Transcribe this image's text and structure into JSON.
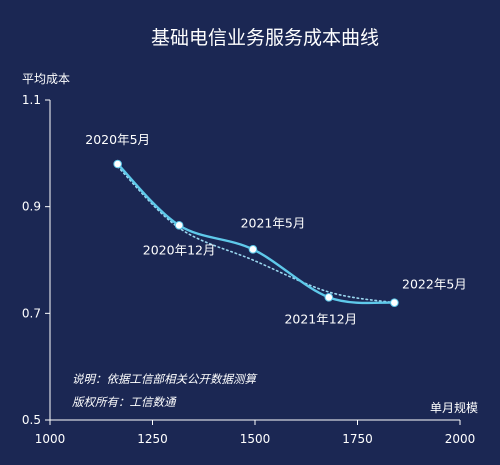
{
  "chart_data": {
    "type": "line",
    "title": "基础电信业务服务成本曲线",
    "xlabel": "单月规模",
    "ylabel": "平均成本",
    "xlim": [
      1000,
      2000
    ],
    "ylim": [
      0.5,
      1.1
    ],
    "xticks": [
      "1000",
      "1250",
      "1500",
      "1750",
      "2000"
    ],
    "yticks": [
      "1.1",
      "0.9",
      "0.7",
      "0.5"
    ],
    "series": [
      {
        "x": [
          1165,
          1315,
          1495,
          1680,
          1840
        ],
        "y": [
          0.98,
          0.865,
          0.82,
          0.73,
          0.72
        ],
        "labels": [
          "2020年5月",
          "2020年12月",
          "2021年5月",
          "2021年12月",
          "2022年5月"
        ],
        "color": "#5fc9ea",
        "style": "solid"
      },
      {
        "type": "trend",
        "style": "dotted",
        "color": "#9ad7ef",
        "x": [
          1165,
          1315,
          1495,
          1680,
          1840
        ],
        "y": [
          0.975,
          0.86,
          0.8,
          0.74,
          0.72
        ]
      }
    ],
    "notes": [
      "说明：依据工信部相关公开数据测算",
      "版权所有：工信数通"
    ],
    "grid": false,
    "legend": "none"
  },
  "colors": {
    "background": "#1b2753",
    "line": "#5fc9ea",
    "axis": "#ffffff"
  }
}
